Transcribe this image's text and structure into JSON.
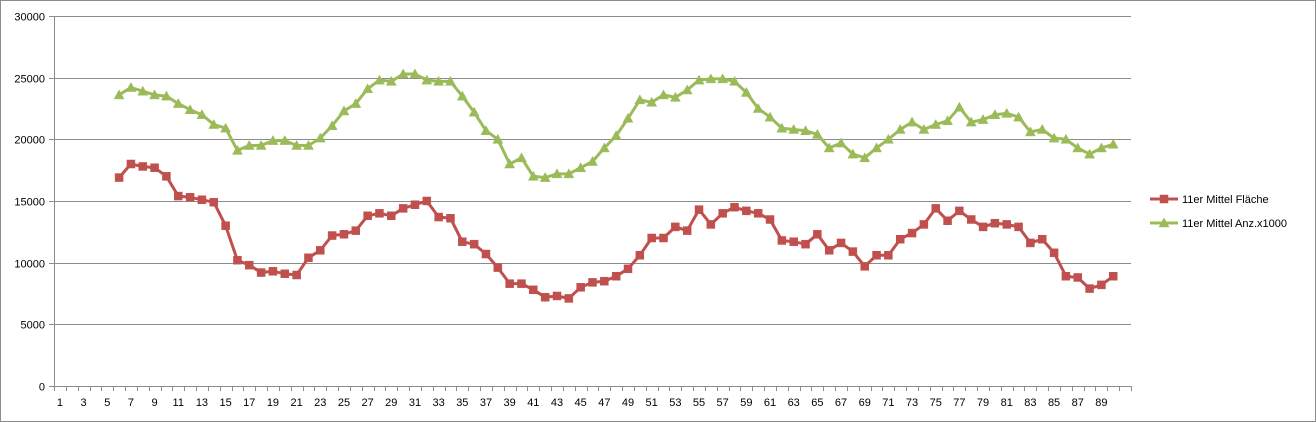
{
  "chart_data": {
    "type": "line",
    "title": "",
    "xlabel": "",
    "ylabel": "",
    "ylim": [
      0,
      30000
    ],
    "yticks": [
      0,
      5000,
      10000,
      15000,
      20000,
      25000,
      30000
    ],
    "xlim": [
      1,
      91
    ],
    "xtick_labels": [
      "1",
      "3",
      "5",
      "7",
      "9",
      "11",
      "13",
      "15",
      "17",
      "19",
      "21",
      "23",
      "25",
      "27",
      "29",
      "31",
      "33",
      "35",
      "37",
      "39",
      "41",
      "43",
      "45",
      "47",
      "49",
      "51",
      "53",
      "55",
      "57",
      "59",
      "61",
      "63",
      "65",
      "67",
      "69",
      "71",
      "73",
      "75",
      "77",
      "79",
      "81",
      "83",
      "85",
      "87",
      "89"
    ],
    "grid": "horizontal",
    "legend_position": "right",
    "x": [
      6,
      7,
      8,
      9,
      10,
      11,
      12,
      13,
      14,
      15,
      16,
      17,
      18,
      19,
      20,
      21,
      22,
      23,
      24,
      25,
      26,
      27,
      28,
      29,
      30,
      31,
      32,
      33,
      34,
      35,
      36,
      37,
      38,
      39,
      40,
      41,
      42,
      43,
      44,
      45,
      46,
      47,
      48,
      49,
      50,
      51,
      52,
      53,
      54,
      55,
      56,
      57,
      58,
      59,
      60,
      61,
      62,
      63,
      64,
      65,
      66,
      67,
      68,
      69,
      70,
      71,
      72,
      73,
      74,
      75,
      76,
      77,
      78,
      79,
      80,
      81,
      82,
      83,
      84,
      85,
      86,
      87,
      88,
      89,
      90
    ],
    "series": [
      {
        "name": "11er Mittel Fläche",
        "color": "#c0504d",
        "marker": "square",
        "values": [
          16900,
          18000,
          17800,
          17700,
          17000,
          15400,
          15300,
          15100,
          14900,
          13000,
          10200,
          9800,
          9200,
          9300,
          9100,
          9000,
          10400,
          11000,
          12200,
          12300,
          12600,
          13800,
          14000,
          13800,
          14400,
          14700,
          15000,
          13700,
          13600,
          11700,
          11500,
          10700,
          9600,
          8300,
          8300,
          7800,
          7200,
          7300,
          7100,
          8000,
          8400,
          8500,
          8900,
          9500,
          10600,
          12000,
          12000,
          12900,
          12600,
          14300,
          13100,
          14000,
          14500,
          14200,
          14000,
          13500,
          11800,
          11700,
          11500,
          12300,
          11000,
          11600,
          10900,
          9700,
          10600,
          10600,
          11900,
          12400,
          13100,
          14400,
          13400,
          14200,
          13500,
          12900,
          13200,
          13100,
          12900,
          11600,
          11900,
          10800,
          8900,
          8800,
          7900,
          8200,
          8900
        ]
      },
      {
        "name": "11er Mittel Anz.x1000",
        "color": "#9bbb59",
        "marker": "triangle",
        "values": [
          23600,
          24200,
          23900,
          23600,
          23500,
          22900,
          22400,
          22000,
          21200,
          20900,
          19100,
          19500,
          19500,
          19900,
          19900,
          19500,
          19500,
          20100,
          21100,
          22300,
          22900,
          24100,
          24800,
          24700,
          25300,
          25300,
          24800,
          24700,
          24700,
          23500,
          22200,
          20700,
          20000,
          18000,
          18500,
          17000,
          16900,
          17200,
          17200,
          17700,
          18200,
          19300,
          20300,
          21700,
          23200,
          23000,
          23600,
          23400,
          24000,
          24800,
          24900,
          24900,
          24700,
          23800,
          22500,
          21800,
          20900,
          20800,
          20700,
          20400,
          19300,
          19700,
          18800,
          18500,
          19300,
          20000,
          20800,
          21400,
          20800,
          21200,
          21500,
          22600,
          21400,
          21600,
          22000,
          22100,
          21800,
          20600,
          20800,
          20100,
          20000,
          19300,
          18800,
          19300,
          19600
        ]
      }
    ]
  }
}
